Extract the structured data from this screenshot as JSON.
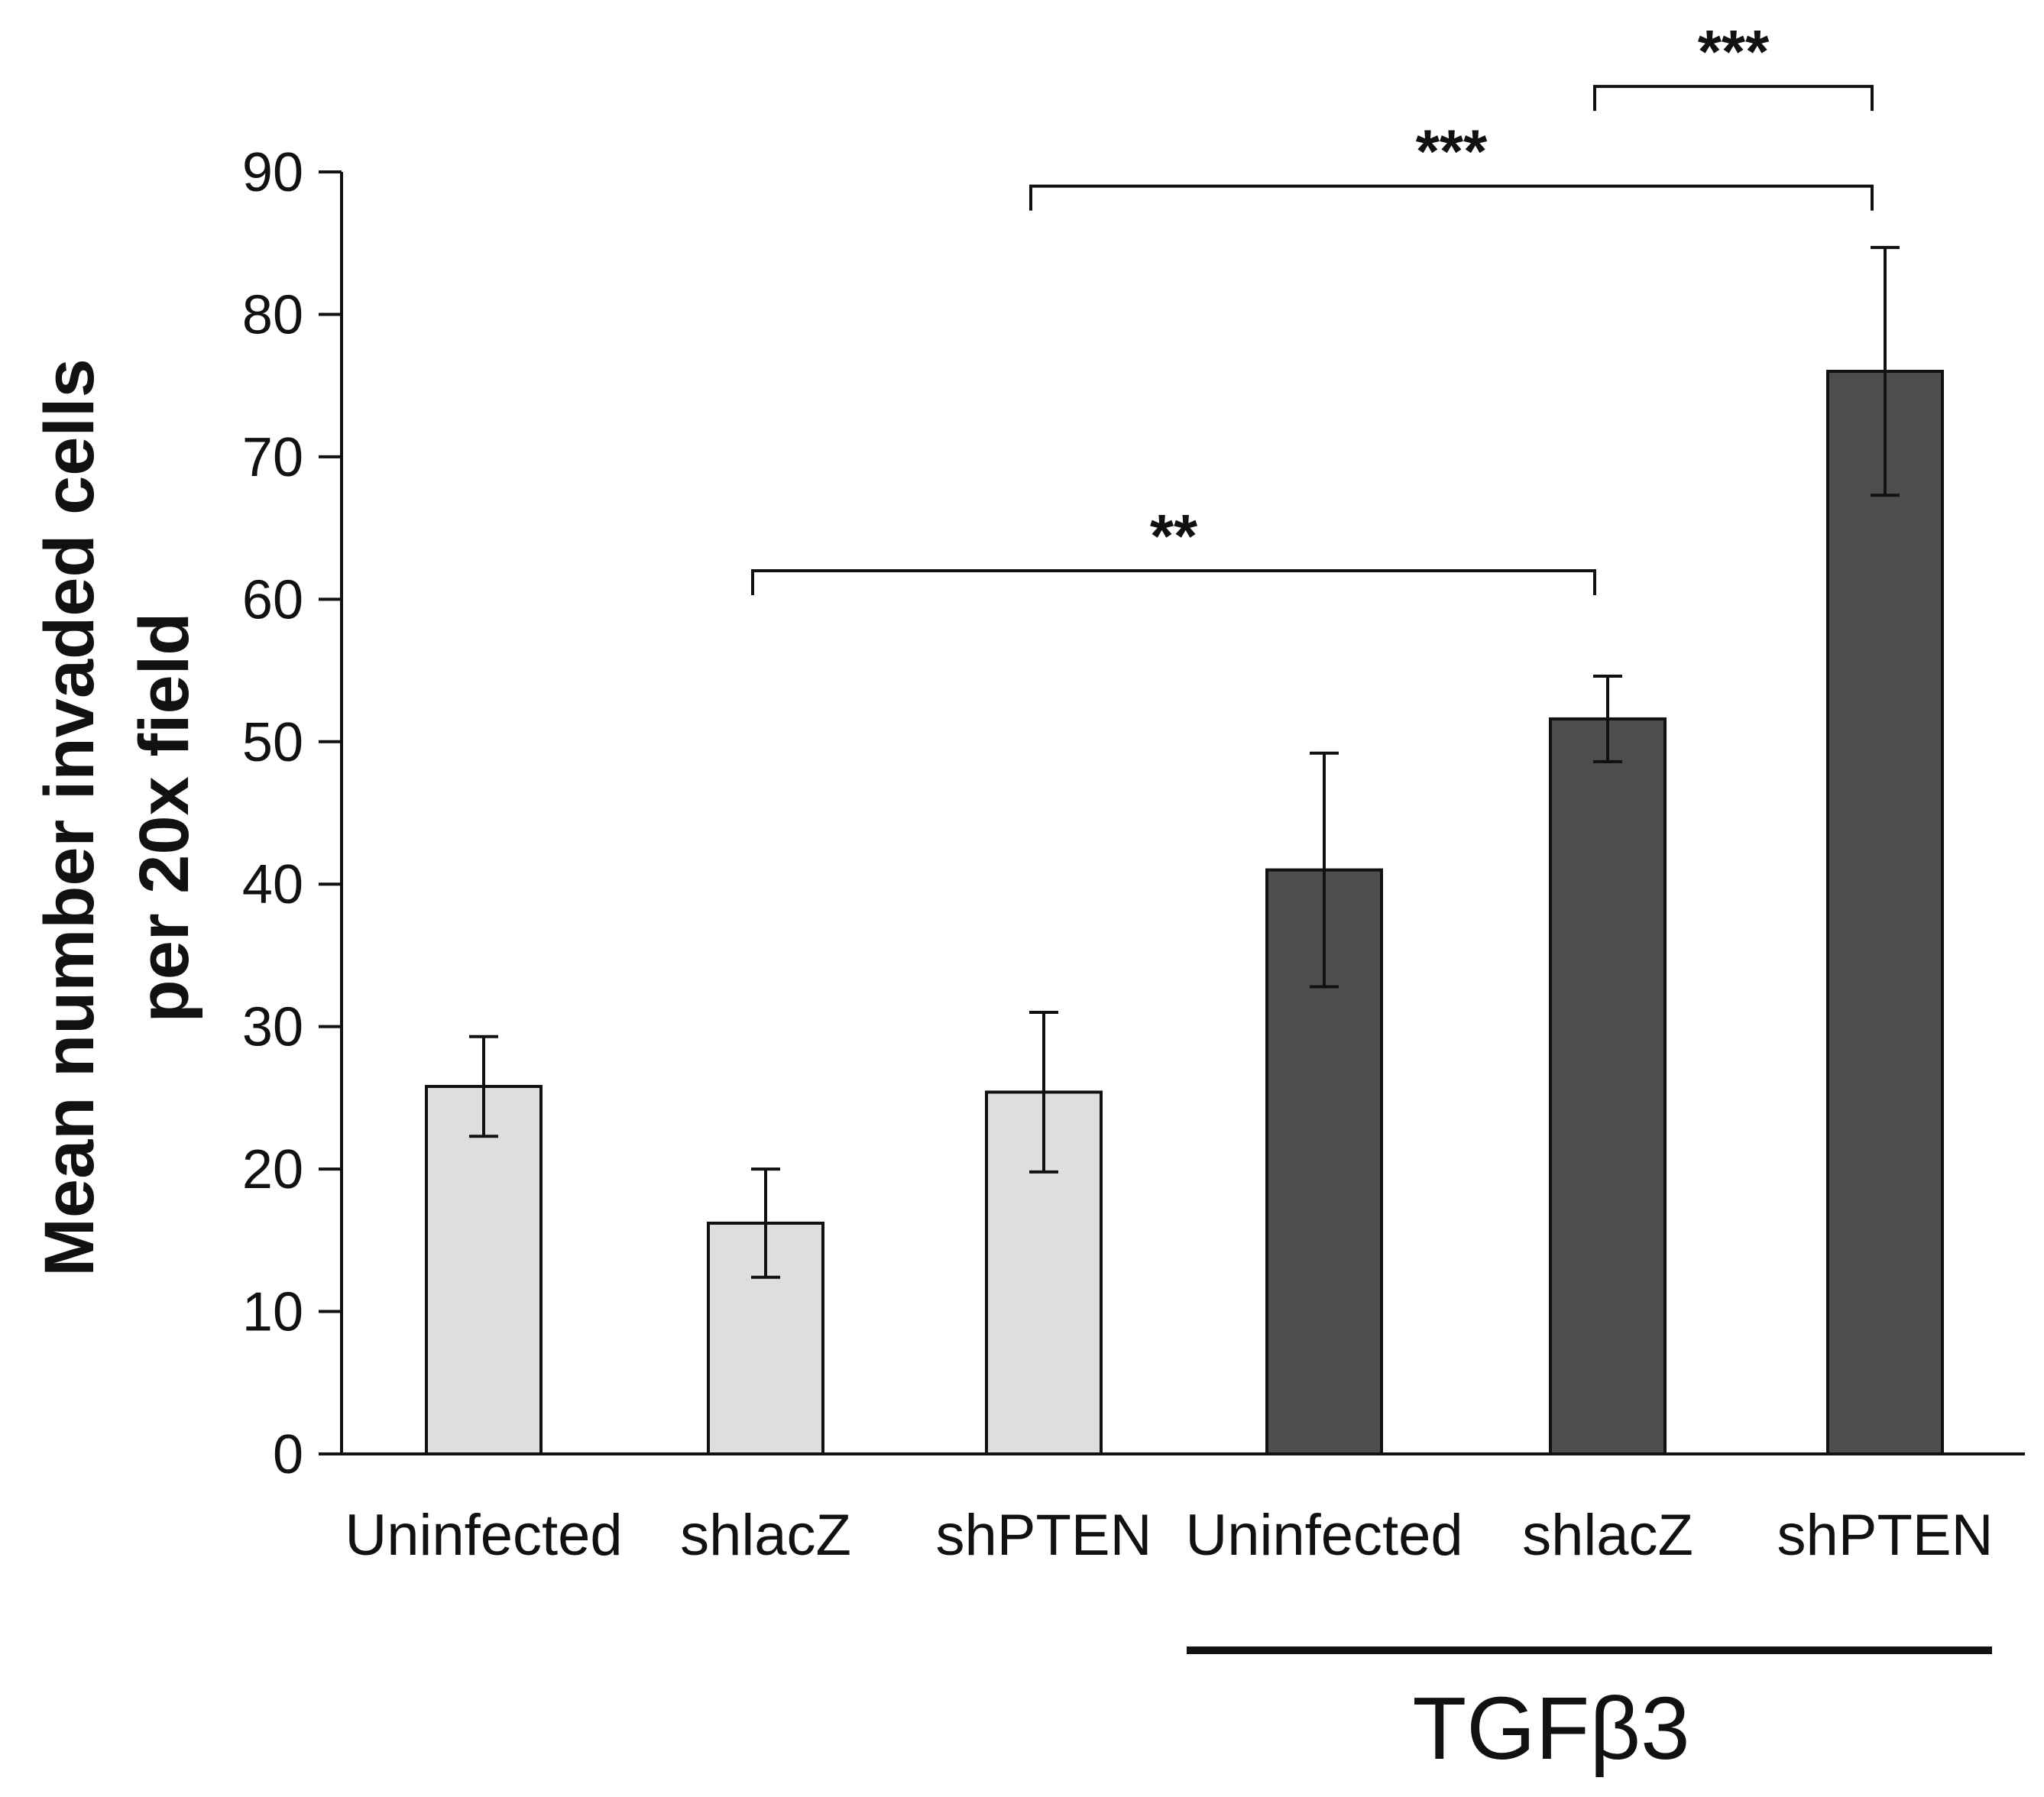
{
  "chart_data": {
    "type": "bar",
    "title": "",
    "xlabel": "",
    "ylabel_lines": [
      "Mean number invaded cells",
      "per 20x field"
    ],
    "ylim": [
      0,
      90
    ],
    "yticks": [
      0,
      10,
      20,
      30,
      40,
      50,
      60,
      70,
      80,
      90
    ],
    "categories": [
      "Uninfected",
      "shlacZ",
      "shPTEN",
      "Uninfected",
      "shlacZ",
      "shPTEN"
    ],
    "values": [
      25.8,
      16.2,
      25.4,
      41.0,
      51.6,
      76.0
    ],
    "errors": [
      3.5,
      3.8,
      5.6,
      8.2,
      3.0,
      8.7
    ],
    "colors": [
      "#dedede",
      "#dedede",
      "#dedede",
      "#4d4d4d",
      "#4d4d4d",
      "#4d4d4d"
    ],
    "group": {
      "label": "TGFβ3",
      "from_index": 3,
      "to_index": 5
    },
    "significance": [
      {
        "from_index": 1,
        "to_index": 4,
        "label": "**",
        "level": 62
      },
      {
        "from_index": 2,
        "to_index": 5,
        "label": "***",
        "level": 89
      },
      {
        "from_index": 4,
        "to_index": 5,
        "label": "***",
        "level": 96
      }
    ]
  }
}
